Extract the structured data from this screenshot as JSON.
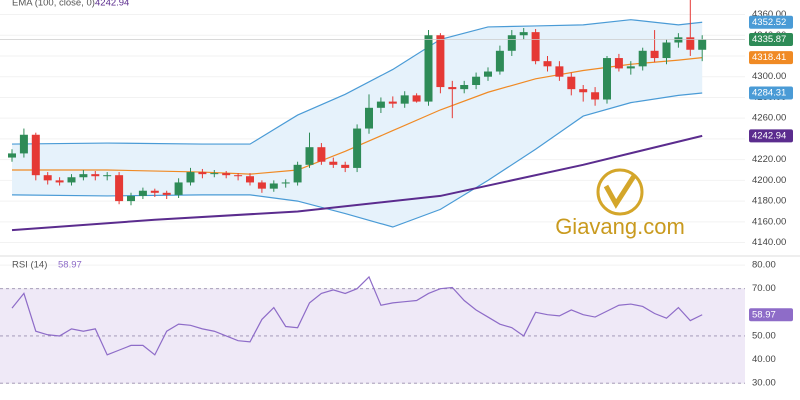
{
  "chart_data": [
    {
      "type": "candlestick",
      "legend_label": "EMA (100, close, 0)",
      "up_color": "#2e8b57",
      "down_color": "#e53935",
      "open": [
        4222,
        4226,
        4244,
        4205,
        4200,
        4198,
        4203,
        4206,
        4204,
        4205,
        4180,
        4185,
        4190,
        4188,
        4186,
        4198,
        4208,
        4206,
        4207,
        4205,
        4204,
        4198,
        4192,
        4197,
        4198,
        4215,
        4232,
        4218,
        4215,
        4212,
        4250,
        4270,
        4276,
        4274,
        4282,
        4276,
        4340,
        4290,
        4288,
        4292,
        4300,
        4305,
        4325,
        4340,
        4343,
        4315,
        4310,
        4300,
        4288,
        4285,
        4278,
        4318,
        4308,
        4310,
        4325,
        4318,
        4333,
        4338,
        4326
      ],
      "high": [
        4230,
        4250,
        4246,
        4208,
        4203,
        4206,
        4210,
        4209,
        4208,
        4208,
        4188,
        4193,
        4192,
        4190,
        4202,
        4212,
        4211,
        4210,
        4209,
        4207,
        4207,
        4200,
        4200,
        4201,
        4218,
        4246,
        4236,
        4222,
        4218,
        4254,
        4283,
        4280,
        4281,
        4286,
        4284,
        4345,
        4342,
        4296,
        4296,
        4304,
        4309,
        4330,
        4345,
        4347,
        4346,
        4320,
        4315,
        4304,
        4292,
        4290,
        4320,
        4322,
        4315,
        4328,
        4345,
        4336,
        4342,
        4375,
        4340
      ],
      "low": [
        4218,
        4222,
        4200,
        4196,
        4195,
        4195,
        4200,
        4200,
        4200,
        4177,
        4176,
        4182,
        4184,
        4182,
        4183,
        4195,
        4202,
        4203,
        4202,
        4200,
        4195,
        4188,
        4189,
        4193,
        4195,
        4212,
        4215,
        4212,
        4208,
        4208,
        4245,
        4265,
        4270,
        4270,
        4275,
        4272,
        4284,
        4260,
        4284,
        4288,
        4296,
        4302,
        4320,
        4336,
        4312,
        4305,
        4296,
        4282,
        4276,
        4272,
        4274,
        4305,
        4302,
        4306,
        4314,
        4312,
        4328,
        4320,
        4315
      ],
      "close": [
        4226,
        4244,
        4205,
        4200,
        4198,
        4203,
        4206,
        4204,
        4205,
        4180,
        4185,
        4190,
        4188,
        4186,
        4198,
        4208,
        4206,
        4207,
        4205,
        4204,
        4198,
        4192,
        4197,
        4198,
        4215,
        4232,
        4218,
        4215,
        4212,
        4250,
        4270,
        4276,
        4274,
        4282,
        4276,
        4340,
        4290,
        4288,
        4292,
        4300,
        4305,
        4325,
        4340,
        4343,
        4315,
        4310,
        4300,
        4288,
        4285,
        4278,
        4318,
        4308,
        4310,
        4325,
        4318,
        4333,
        4338,
        4326,
        4335.87
      ],
      "band_fill": "#e6f2fb",
      "series": [
        {
          "color": "#4a9bd6",
          "x": [
            0,
            8,
            16,
            20,
            24,
            28,
            32,
            36,
            40,
            44,
            48,
            52,
            56,
            58
          ],
          "values": [
            4235,
            4236,
            4235,
            4235,
            4263,
            4283,
            4307,
            4336,
            4348,
            4349,
            4350,
            4355,
            4350,
            4352.52
          ]
        },
        {
          "color": "#f08a24",
          "x": [
            0,
            8,
            16,
            20,
            24,
            28,
            32,
            36,
            40,
            44,
            48,
            52,
            56,
            58
          ],
          "values": [
            4210,
            4210,
            4208,
            4206,
            4210,
            4228,
            4248,
            4268,
            4285,
            4298,
            4306,
            4312,
            4316,
            4318.41
          ]
        },
        {
          "color": "#4a9bd6",
          "x": [
            0,
            8,
            16,
            20,
            24,
            28,
            32,
            36,
            40,
            44,
            48,
            52,
            56,
            58
          ],
          "values": [
            4186,
            4185,
            4186,
            4186,
            4180,
            4168,
            4155,
            4172,
            4200,
            4230,
            4262,
            4275,
            4282,
            4284.31
          ]
        },
        {
          "name": "EMA (100, close, 0)",
          "color": "#5b2c8e",
          "x": [
            0,
            12,
            24,
            36,
            48,
            58
          ],
          "values": [
            4152,
            4162,
            4170,
            4185,
            4215,
            4242.94
          ]
        }
      ],
      "ylim": [
        4128,
        4374
      ],
      "yticks": [
        {
          "value": 4140,
          "label": "4140.00"
        },
        {
          "value": 4160,
          "label": "4160.00"
        },
        {
          "value": 4180,
          "label": "4180.00"
        },
        {
          "value": 4200,
          "label": "4200.00"
        },
        {
          "value": 4220,
          "label": "4220.00"
        },
        {
          "value": 4240,
          "label": "4240.00"
        },
        {
          "value": 4260,
          "label": "4260.00"
        },
        {
          "value": 4280,
          "label": "4280.00"
        },
        {
          "value": 4300,
          "label": "4300.00"
        },
        {
          "value": 4320,
          "label": "4320.00"
        },
        {
          "value": 4340,
          "label": "4340.00"
        },
        {
          "value": 4360,
          "label": "4360.00"
        }
      ],
      "watermark": "Giavang.com"
    },
    {
      "type": "line",
      "title": "RSI (14)",
      "series": [
        {
          "name": "RSI (14)",
          "color": "#8e6cc8",
          "values": [
            61.8,
            68,
            52,
            50.5,
            50,
            53,
            52,
            53,
            42,
            44,
            46,
            46,
            42,
            52,
            55,
            54.5,
            53,
            52,
            50,
            48,
            47.5,
            57,
            62,
            54,
            53.5,
            64,
            68,
            69.5,
            68,
            70,
            75,
            63,
            64,
            64.5,
            65,
            68,
            70,
            70.5,
            65,
            61,
            58,
            55,
            53.5,
            50,
            60,
            59,
            58.5,
            61,
            59,
            58,
            60.5,
            63,
            63.5,
            62.5,
            59.5,
            57.5,
            62,
            56.5,
            58.97
          ]
        }
      ],
      "levels": [
        30,
        50,
        70
      ],
      "band_color": "#efe9f7",
      "ylim": [
        25,
        83
      ],
      "yticks": [
        {
          "value": 30,
          "label": "30.00"
        },
        {
          "value": 40,
          "label": "40.00"
        },
        {
          "value": 50,
          "label": "50.00"
        },
        {
          "value": 60,
          "label": "60.00"
        },
        {
          "value": 70,
          "label": "70.00"
        },
        {
          "value": 80,
          "label": "80.00"
        }
      ]
    }
  ]
}
